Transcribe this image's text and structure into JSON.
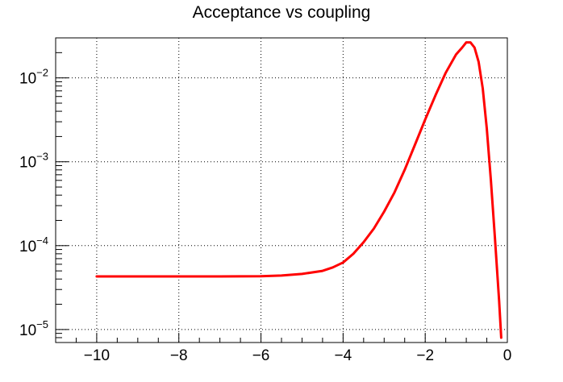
{
  "chart_data": {
    "type": "line",
    "title": "Acceptance vs coupling",
    "xlabel": "",
    "ylabel": "",
    "xlim": [
      -11,
      0
    ],
    "ylim": [
      7e-06,
      0.03
    ],
    "yscale": "log",
    "grid": true,
    "x_ticks": [
      -10,
      -8,
      -6,
      -4,
      -2,
      0
    ],
    "x_tick_labels": [
      "−10",
      "−8",
      "−6",
      "−4",
      "−2",
      "0"
    ],
    "y_ticks": [
      {
        "value": 1e-05,
        "base": "10",
        "exp": "−5"
      },
      {
        "value": 0.0001,
        "base": "10",
        "exp": "−4"
      },
      {
        "value": 0.001,
        "base": "10",
        "exp": "−3"
      },
      {
        "value": 0.01,
        "base": "10",
        "exp": "−2"
      }
    ],
    "series": [
      {
        "name": "",
        "color": "#ff0000",
        "x": [
          -10,
          -9,
          -8,
          -7,
          -6,
          -5.5,
          -5,
          -4.5,
          -4.25,
          -4,
          -3.75,
          -3.5,
          -3.25,
          -3,
          -2.75,
          -2.5,
          -2.25,
          -2,
          -1.75,
          -1.5,
          -1.25,
          -1.1,
          -1,
          -0.9,
          -0.8,
          -0.7,
          -0.6,
          -0.5,
          -0.4,
          -0.3,
          -0.2,
          -0.15
        ],
        "y": [
          4.3e-05,
          4.3e-05,
          4.3e-05,
          4.3e-05,
          4.32e-05,
          4.4e-05,
          4.6e-05,
          5e-05,
          5.5e-05,
          6.3e-05,
          8e-05,
          0.00011,
          0.00016,
          0.000255,
          0.00043,
          0.0008,
          0.0016,
          0.0032,
          0.0062,
          0.0115,
          0.019,
          0.023,
          0.0265,
          0.0265,
          0.023,
          0.0155,
          0.0075,
          0.0025,
          0.0006,
          0.00012,
          2.2e-05,
          8e-06
        ]
      }
    ]
  }
}
